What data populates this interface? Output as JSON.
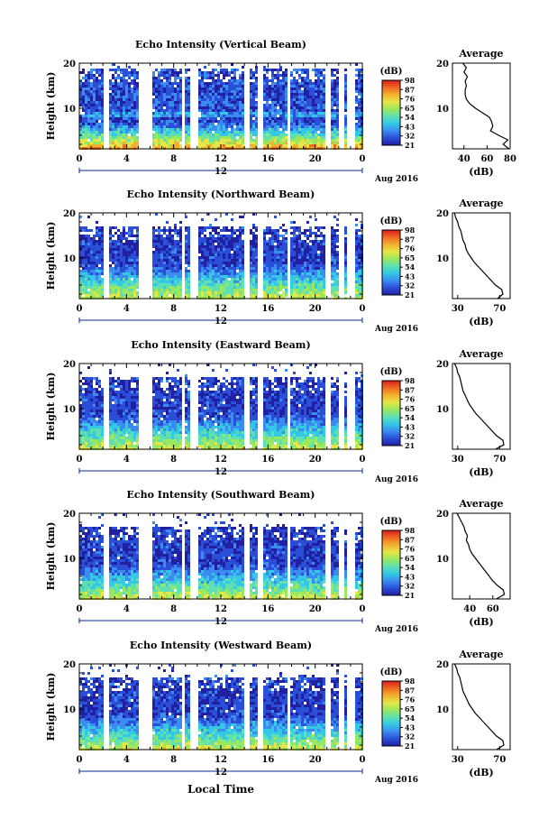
{
  "figure": {
    "xlabel": "Local Time",
    "date_label": "Aug 2016",
    "mid_tick_label": "12",
    "colorbar_unit": "(dB)",
    "colorbar_ticks": [
      "98",
      "87",
      "76",
      "65",
      "54",
      "43",
      "32",
      "21"
    ],
    "colors": {
      "ramp": [
        "#2020a0",
        "#2a4ed8",
        "#3c8cf0",
        "#33c8e6",
        "#5ee0b0",
        "#9ae860",
        "#e6e648",
        "#f2b030",
        "#f06a22",
        "#d81c1c"
      ],
      "line": "#000000",
      "date_axis": "#0a2a8a"
    }
  },
  "chart_data": [
    {
      "type": "heatmap",
      "title": "Echo Intensity (Vertical Beam)",
      "ylabel": "Height (km)",
      "x_ticks": [
        "0",
        "4",
        "8",
        "12",
        "16",
        "20",
        "0"
      ],
      "y_ticks": [
        "20",
        "10"
      ],
      "xlim": [
        0,
        24
      ],
      "ylim": [
        1,
        20
      ],
      "gaps_hours": [
        [
          2.0,
          2.5
        ],
        [
          5.0,
          6.0
        ],
        [
          8.5,
          8.8
        ],
        [
          9.4,
          9.9
        ],
        [
          13.8,
          14.3
        ],
        [
          15.0,
          15.4
        ],
        [
          17.5,
          17.8
        ],
        [
          20.8,
          21.1
        ],
        [
          22.0,
          22.3
        ],
        [
          22.6,
          23.2
        ]
      ],
      "profile": {
        "title": "Average",
        "xlabel": "(dB)",
        "x_ticks": [
          "40",
          "60",
          "80"
        ],
        "y_ticks": [
          "20",
          "10"
        ],
        "xlim": [
          30,
          80
        ],
        "heights": [
          20,
          19,
          18,
          17,
          16,
          15,
          14,
          13,
          12,
          11,
          10,
          9,
          8,
          7,
          6,
          5,
          4,
          3,
          2,
          1
        ],
        "values": [
          39,
          42,
          40,
          43,
          41,
          42,
          41,
          41,
          42,
          45,
          50,
          56,
          62,
          64,
          65,
          63,
          70,
          78,
          74,
          79
        ]
      }
    },
    {
      "type": "heatmap",
      "title": "Echo Intensity (Northward Beam)",
      "ylabel": "Height (km)",
      "x_ticks": [
        "0",
        "4",
        "8",
        "12",
        "16",
        "20",
        "0"
      ],
      "y_ticks": [
        "20",
        "10"
      ],
      "xlim": [
        0,
        24
      ],
      "ylim": [
        1,
        20
      ],
      "gaps_hours": [
        [
          2.0,
          2.5
        ],
        [
          5.0,
          6.0
        ],
        [
          8.5,
          8.8
        ],
        [
          9.4,
          9.9
        ],
        [
          13.8,
          14.3
        ],
        [
          15.0,
          15.4
        ],
        [
          17.5,
          17.8
        ],
        [
          20.8,
          21.1
        ],
        [
          22.0,
          22.3
        ],
        [
          22.6,
          23.2
        ]
      ],
      "profile": {
        "title": "Average",
        "xlabel": "(dB)",
        "x_ticks": [
          "30",
          "70"
        ],
        "y_ticks": [
          "20",
          "10"
        ],
        "xlim": [
          25,
          80
        ],
        "heights": [
          20,
          19,
          18,
          17,
          16,
          15,
          14,
          13,
          12,
          11,
          10,
          9,
          8,
          7,
          6,
          5,
          4,
          3,
          2,
          1
        ],
        "values": [
          27,
          28,
          30,
          31,
          33,
          34,
          35,
          37,
          38,
          40,
          43,
          46,
          50,
          54,
          58,
          62,
          66,
          72,
          73,
          68
        ]
      }
    },
    {
      "type": "heatmap",
      "title": "Echo Intensity (Eastward Beam)",
      "ylabel": "Height (km)",
      "x_ticks": [
        "0",
        "4",
        "8",
        "12",
        "16",
        "20",
        "0"
      ],
      "y_ticks": [
        "20",
        "10"
      ],
      "xlim": [
        0,
        24
      ],
      "ylim": [
        1,
        20
      ],
      "gaps_hours": [
        [
          2.0,
          2.5
        ],
        [
          5.0,
          6.0
        ],
        [
          8.5,
          8.8
        ],
        [
          9.4,
          9.9
        ],
        [
          13.8,
          14.3
        ],
        [
          15.0,
          15.4
        ],
        [
          17.5,
          17.8
        ],
        [
          20.8,
          21.1
        ],
        [
          22.0,
          22.3
        ],
        [
          22.6,
          23.2
        ]
      ],
      "profile": {
        "title": "Average",
        "xlabel": "(dB)",
        "x_ticks": [
          "30",
          "70"
        ],
        "y_ticks": [
          "20",
          "10"
        ],
        "xlim": [
          25,
          80
        ],
        "heights": [
          20,
          19,
          18,
          17,
          16,
          15,
          14,
          13,
          12,
          11,
          10,
          9,
          8,
          7,
          6,
          5,
          4,
          3,
          2,
          1
        ],
        "values": [
          27,
          29,
          30,
          32,
          33,
          34,
          35,
          37,
          39,
          41,
          44,
          47,
          51,
          55,
          59,
          63,
          67,
          73,
          74,
          66
        ]
      }
    },
    {
      "type": "heatmap",
      "title": "Echo Intensity (Southward Beam)",
      "ylabel": "Height (km)",
      "x_ticks": [
        "0",
        "4",
        "8",
        "12",
        "16",
        "20",
        "0"
      ],
      "y_ticks": [
        "20",
        "10"
      ],
      "xlim": [
        0,
        24
      ],
      "ylim": [
        1,
        20
      ],
      "gaps_hours": [
        [
          2.0,
          2.5
        ],
        [
          5.0,
          6.0
        ],
        [
          8.5,
          8.8
        ],
        [
          9.4,
          9.9
        ],
        [
          13.8,
          14.3
        ],
        [
          15.0,
          15.4
        ],
        [
          17.5,
          17.8
        ],
        [
          20.8,
          21.1
        ],
        [
          22.0,
          22.3
        ],
        [
          22.6,
          23.2
        ]
      ],
      "profile": {
        "title": "Average",
        "xlabel": "(dB)",
        "x_ticks": [
          "40",
          "60"
        ],
        "y_ticks": [
          "20",
          "10"
        ],
        "xlim": [
          25,
          75
        ],
        "heights": [
          20,
          19,
          18,
          17,
          16,
          15,
          14,
          13,
          12,
          11,
          10,
          9,
          8,
          7,
          6,
          5,
          4,
          3,
          2,
          1
        ],
        "values": [
          29,
          31,
          33,
          35,
          36,
          38,
          37,
          39,
          40,
          42,
          45,
          48,
          51,
          54,
          57,
          60,
          64,
          69,
          70,
          63
        ]
      }
    },
    {
      "type": "heatmap",
      "title": "Echo Intensity (Westward Beam)",
      "ylabel": "Height (km)",
      "x_ticks": [
        "0",
        "4",
        "8",
        "12",
        "16",
        "20",
        "0"
      ],
      "y_ticks": [
        "20",
        "10"
      ],
      "xlim": [
        0,
        24
      ],
      "ylim": [
        1,
        20
      ],
      "gaps_hours": [
        [
          2.0,
          2.5
        ],
        [
          5.0,
          6.0
        ],
        [
          8.5,
          8.8
        ],
        [
          9.4,
          9.9
        ],
        [
          13.8,
          14.3
        ],
        [
          15.0,
          15.4
        ],
        [
          17.5,
          17.8
        ],
        [
          20.8,
          21.1
        ],
        [
          22.0,
          22.3
        ],
        [
          22.6,
          23.2
        ]
      ],
      "profile": {
        "title": "Average",
        "xlabel": "(dB)",
        "x_ticks": [
          "30",
          "70"
        ],
        "y_ticks": [
          "20",
          "10"
        ],
        "xlim": [
          25,
          80
        ],
        "heights": [
          20,
          19,
          18,
          17,
          16,
          15,
          14,
          13,
          12,
          11,
          10,
          9,
          8,
          7,
          6,
          5,
          4,
          3,
          2,
          1
        ],
        "values": [
          27,
          29,
          30,
          32,
          33,
          34,
          35,
          37,
          39,
          41,
          44,
          47,
          51,
          55,
          59,
          63,
          67,
          73,
          74,
          67
        ]
      }
    }
  ]
}
